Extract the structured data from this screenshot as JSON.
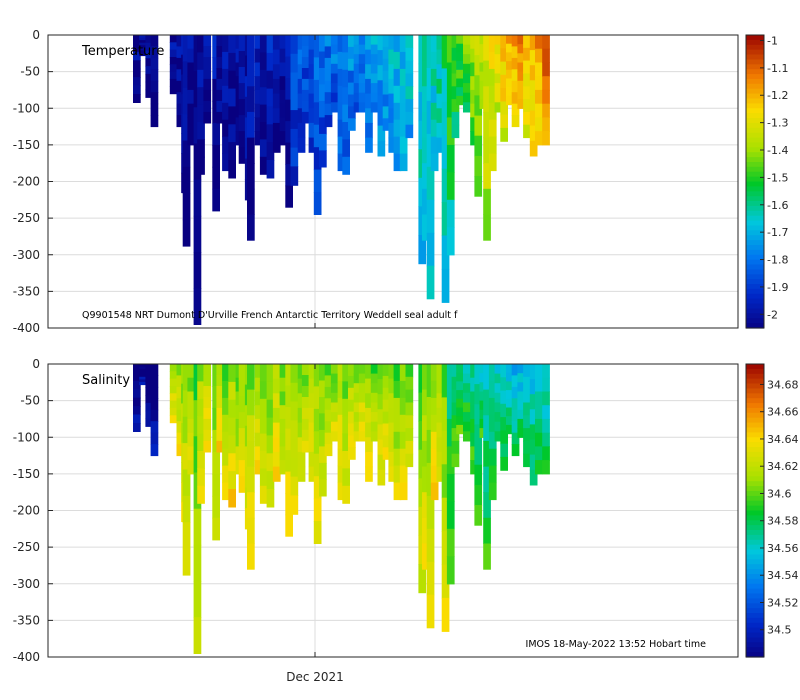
{
  "chart_data": [
    {
      "type": "heatmap",
      "title": "Temperature",
      "annotation": "Q9901548 NRT Dumont D'Urville French Antarctic Territory Weddell seal adult f",
      "ylabel": "",
      "xlabel": "",
      "ylim": [
        -400,
        0
      ],
      "y_ticks": [
        "0",
        "-50",
        "-100",
        "-150",
        "-200",
        "-250",
        "-300",
        "-350",
        "-400"
      ],
      "x_ticks": [],
      "colorbar": {
        "range": [
          -2.05,
          -0.98
        ],
        "ticks": [
          "-1",
          "-1.1",
          "-1.2",
          "-1.3",
          "-1.4",
          "-1.5",
          "-1.6",
          "-1.7",
          "-1.8",
          "-1.9",
          "-2"
        ],
        "tick_values": [
          -1,
          -1.1,
          -1.2,
          -1.3,
          -1.4,
          -1.5,
          -1.6,
          -1.7,
          -1.8,
          -1.9,
          -2
        ]
      },
      "grid": true
    },
    {
      "type": "heatmap",
      "title": "Salinity",
      "annotation": "IMOS 18-May-2022 13:52 Hobart time",
      "ylabel": "",
      "xlabel": "",
      "ylim": [
        -400,
        0
      ],
      "y_ticks": [
        "0",
        "-50",
        "-100",
        "-150",
        "-200",
        "-250",
        "-300",
        "-350",
        "-400"
      ],
      "x_ticks": [
        "Dec 2021"
      ],
      "colorbar": {
        "range": [
          34.48,
          34.695
        ],
        "ticks": [
          "34.68",
          "34.66",
          "34.64",
          "34.62",
          "34.6",
          "34.58",
          "34.56",
          "34.54",
          "34.52",
          "34.5"
        ],
        "tick_values": [
          34.68,
          34.66,
          34.64,
          34.62,
          34.6,
          34.58,
          34.56,
          34.54,
          34.52,
          34.5
        ]
      },
      "grid": true
    }
  ],
  "profiles": [
    {
      "t": 0.0,
      "d": 92
    },
    {
      "t": 0.012,
      "d": 28
    },
    {
      "t": 0.024,
      "d": 85
    },
    {
      "t": 0.034,
      "d": 125
    },
    {
      "t": 0.071,
      "d": 80
    },
    {
      "t": 0.084,
      "d": 125
    },
    {
      "t": 0.093,
      "d": 215
    },
    {
      "t": 0.096,
      "d": 288
    },
    {
      "t": 0.105,
      "d": 150
    },
    {
      "t": 0.117,
      "d": 395
    },
    {
      "t": 0.124,
      "d": 190
    },
    {
      "t": 0.136,
      "d": 120
    },
    {
      "t": 0.153,
      "d": 240
    },
    {
      "t": 0.161,
      "d": 120
    },
    {
      "t": 0.172,
      "d": 185
    },
    {
      "t": 0.184,
      "d": 195
    },
    {
      "t": 0.198,
      "d": 150
    },
    {
      "t": 0.204,
      "d": 175
    },
    {
      "t": 0.216,
      "d": 225
    },
    {
      "t": 0.22,
      "d": 280
    },
    {
      "t": 0.235,
      "d": 150
    },
    {
      "t": 0.245,
      "d": 190
    },
    {
      "t": 0.258,
      "d": 195
    },
    {
      "t": 0.27,
      "d": 160
    },
    {
      "t": 0.283,
      "d": 150
    },
    {
      "t": 0.294,
      "d": 235
    },
    {
      "t": 0.304,
      "d": 205
    },
    {
      "t": 0.318,
      "d": 160
    },
    {
      "t": 0.326,
      "d": 120
    },
    {
      "t": 0.339,
      "d": 160
    },
    {
      "t": 0.349,
      "d": 245
    },
    {
      "t": 0.359,
      "d": 180
    },
    {
      "t": 0.37,
      "d": 125
    },
    {
      "t": 0.382,
      "d": 105
    },
    {
      "t": 0.395,
      "d": 185
    },
    {
      "t": 0.404,
      "d": 190
    },
    {
      "t": 0.415,
      "d": 130
    },
    {
      "t": 0.426,
      "d": 105
    },
    {
      "t": 0.436,
      "d": 105
    },
    {
      "t": 0.448,
      "d": 160
    },
    {
      "t": 0.459,
      "d": 105
    },
    {
      "t": 0.472,
      "d": 165
    },
    {
      "t": 0.482,
      "d": 130
    },
    {
      "t": 0.493,
      "d": 160
    },
    {
      "t": 0.503,
      "d": 185
    },
    {
      "t": 0.515,
      "d": 185
    },
    {
      "t": 0.526,
      "d": 140
    },
    {
      "t": 0.551,
      "d": 312
    },
    {
      "t": 0.558,
      "d": 280
    },
    {
      "t": 0.567,
      "d": 360
    },
    {
      "t": 0.575,
      "d": 185
    },
    {
      "t": 0.586,
      "d": 160
    },
    {
      "t": 0.596,
      "d": 365
    },
    {
      "t": 0.606,
      "d": 300
    },
    {
      "t": 0.615,
      "d": 140
    },
    {
      "t": 0.624,
      "d": 95
    },
    {
      "t": 0.637,
      "d": 105
    },
    {
      "t": 0.651,
      "d": 150
    },
    {
      "t": 0.659,
      "d": 220
    },
    {
      "t": 0.669,
      "d": 100
    },
    {
      "t": 0.676,
      "d": 280
    },
    {
      "t": 0.687,
      "d": 185
    },
    {
      "t": 0.698,
      "d": 105
    },
    {
      "t": 0.709,
      "d": 145
    },
    {
      "t": 0.72,
      "d": 95
    },
    {
      "t": 0.731,
      "d": 125
    },
    {
      "t": 0.742,
      "d": 100
    },
    {
      "t": 0.753,
      "d": 140
    },
    {
      "t": 0.766,
      "d": 165
    },
    {
      "t": 0.776,
      "d": 150
    },
    {
      "t": 0.79,
      "d": 150
    }
  ]
}
